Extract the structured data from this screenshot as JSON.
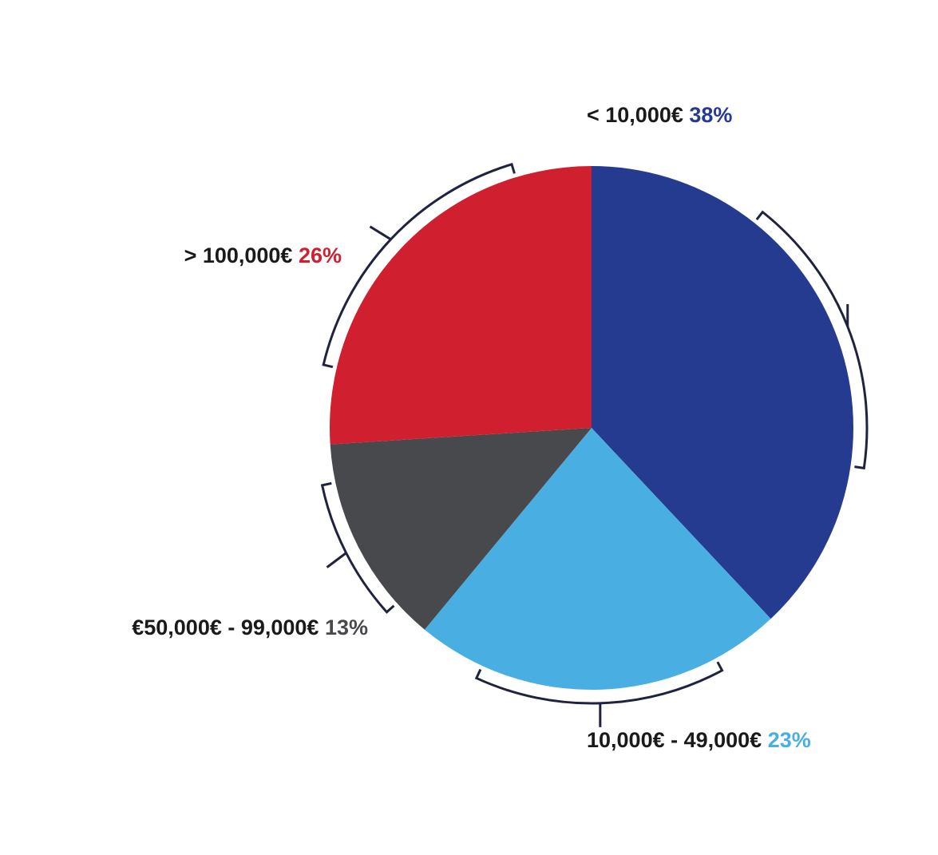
{
  "chart_data": {
    "type": "pie",
    "title": "",
    "slices": [
      {
        "label": "< 10,000€",
        "value": 38,
        "display": "38%",
        "color": "#243b8f"
      },
      {
        "label": "10,000€ -  49,000€",
        "value": 23,
        "display": "23%",
        "color": "#49afe3"
      },
      {
        "label": "€50,000€ -  99,000€",
        "value": 13,
        "display": "13%",
        "color": "#48494d"
      },
      {
        "label": "> 100,000€",
        "value": 26,
        "display": "26%",
        "color": "#d01f2f"
      }
    ]
  },
  "colors": {
    "bracket": "#1f2340",
    "label_text": "#1a1a1a",
    "background": "#ffffff"
  }
}
